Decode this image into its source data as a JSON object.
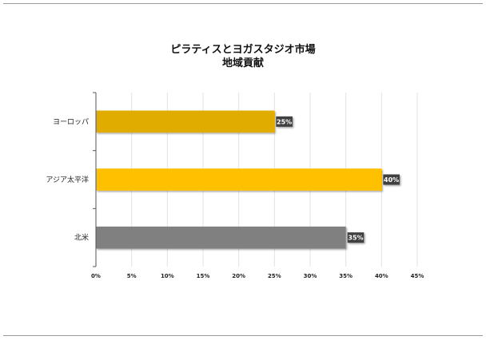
{
  "chart_data": {
    "type": "bar",
    "orientation": "horizontal",
    "title": "ピラティスとヨガスタジオ市場",
    "subtitle": "地域貢献",
    "categories": [
      "ヨーロッパ",
      "アジア太平洋",
      "北米"
    ],
    "values": [
      25,
      40,
      35
    ],
    "value_labels": [
      "25%",
      "40%",
      "35%"
    ],
    "colors": [
      "#E0AC00",
      "#FFC000",
      "#808080"
    ],
    "xlim": [
      0,
      45
    ],
    "xticks": [
      0,
      5,
      10,
      15,
      20,
      25,
      30,
      35,
      40,
      45
    ],
    "xtick_labels": [
      "0%",
      "5%",
      "10%",
      "15%",
      "20%",
      "25%",
      "30%",
      "35%",
      "40%",
      "45%"
    ],
    "grid": "vertical",
    "legend": "none"
  }
}
